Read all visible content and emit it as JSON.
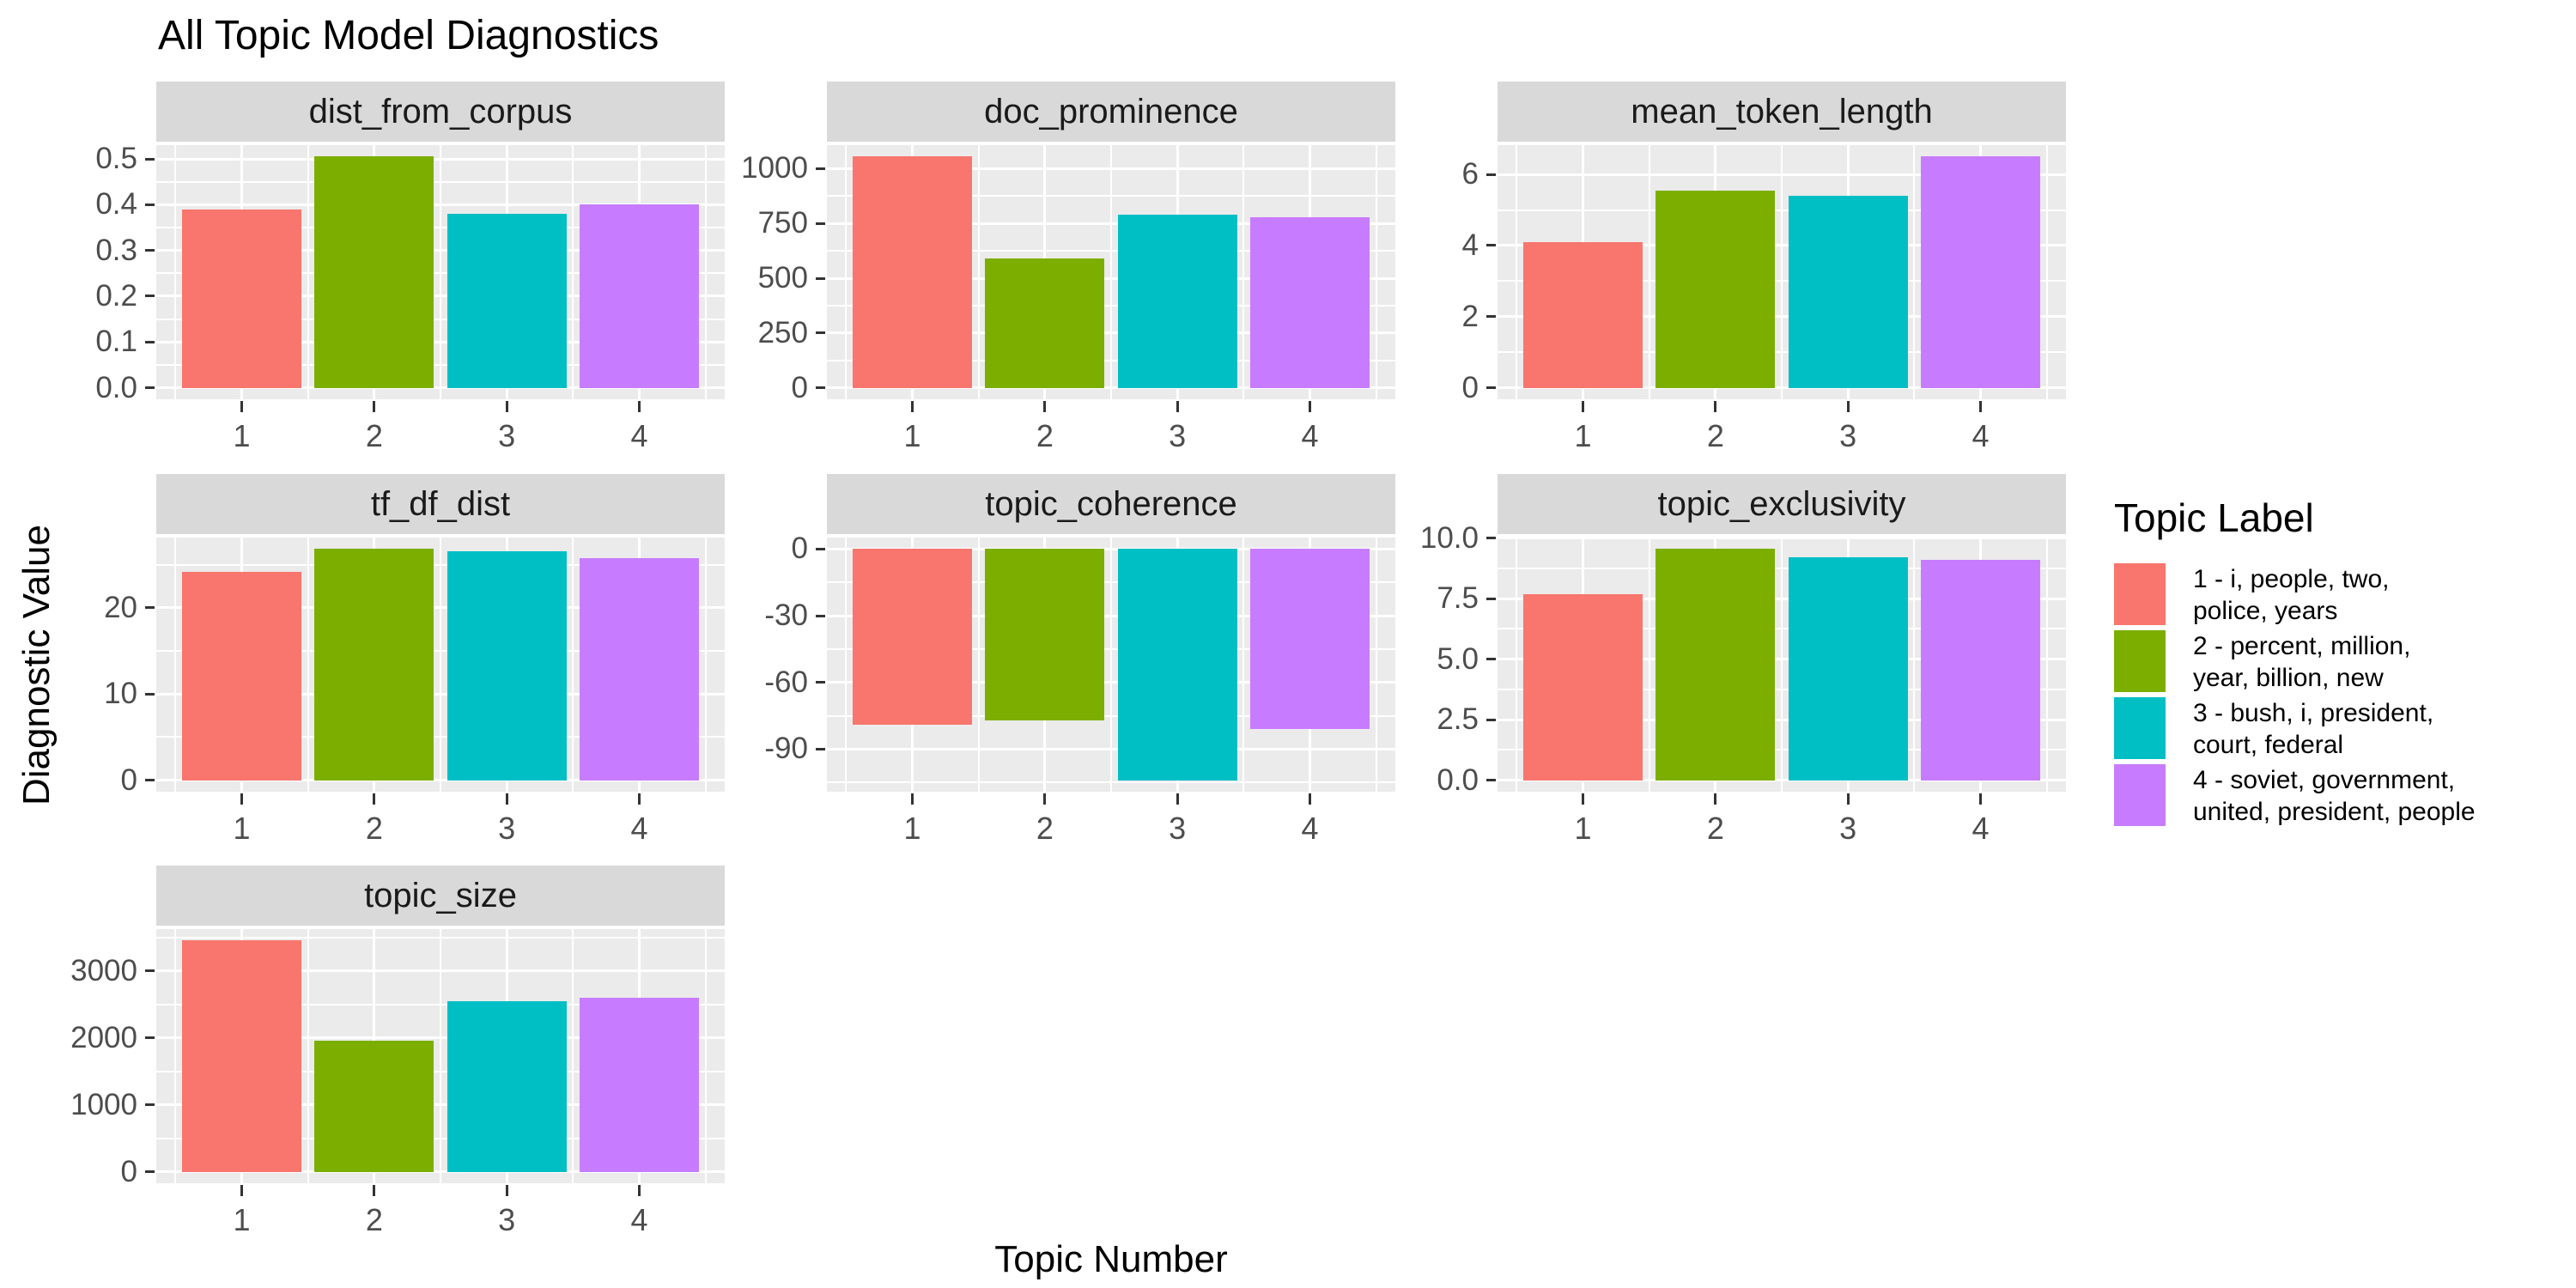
{
  "title": "All Topic Model Diagnostics",
  "axes": {
    "y_title": "Diagnostic Value",
    "x_title": "Topic Number"
  },
  "legend": {
    "title": "Topic Label",
    "items": [
      {
        "color": "#F8766D",
        "label": "1 - i, people, two, police, years",
        "lines": [
          "1 - i, people, two,",
          "police, years"
        ]
      },
      {
        "color": "#7CAE00",
        "label": "2 - percent, million, year, billion, new",
        "lines": [
          "2 - percent, million,",
          "year, billion, new"
        ]
      },
      {
        "color": "#00BFC4",
        "label": "3 - bush, i, president, court, federal",
        "lines": [
          "3 - bush, i, president,",
          "court, federal"
        ]
      },
      {
        "color": "#C77CFF",
        "label": "4 - soviet, government, united, president, people",
        "lines": [
          "4 - soviet, government,",
          "united, president, people"
        ]
      }
    ]
  },
  "colors": {
    "bar_palette": [
      "#F8766D",
      "#7CAE00",
      "#00BFC4",
      "#C77CFF"
    ],
    "panel_background": "#EBEBEB",
    "strip_background": "#D9D9D9",
    "gridline": "#FFFFFF",
    "tick_text": "#4D4D4D"
  },
  "chart_data": {
    "type": "bar",
    "faceted": true,
    "title": "All Topic Model Diagnostics",
    "xlabel": "Topic Number",
    "ylabel": "Diagnostic Value",
    "categories": [
      "1",
      "2",
      "3",
      "4"
    ],
    "bar_colors": [
      "#F8766D",
      "#7CAE00",
      "#00BFC4",
      "#C77CFF"
    ],
    "legend_position": "right",
    "grid": true,
    "facets": [
      {
        "name": "dist_from_corpus",
        "values": [
          0.39,
          0.505,
          0.38,
          0.4
        ],
        "yticks": [
          0,
          0.1,
          0.2,
          0.3,
          0.4,
          0.5
        ],
        "ytick_labels": [
          "0.0",
          "0.1",
          "0.2",
          "0.3",
          "0.4",
          "0.5"
        ],
        "ylim": [
          -0.0253,
          0.5303
        ]
      },
      {
        "name": "doc_prominence",
        "values": [
          1055,
          590,
          790,
          778
        ],
        "yticks": [
          0,
          250,
          500,
          750,
          1000
        ],
        "ytick_labels": [
          "0",
          "250",
          "500",
          "750",
          "1000"
        ],
        "ylim": [
          -52.75,
          1107.75
        ]
      },
      {
        "name": "mean_token_length",
        "values": [
          4.1,
          5.55,
          5.4,
          6.5
        ],
        "yticks": [
          0,
          2,
          4,
          6
        ],
        "ytick_labels": [
          "0",
          "2",
          "4",
          "6"
        ],
        "ylim": [
          -0.325,
          6.825
        ]
      },
      {
        "name": "tf_df_dist",
        "values": [
          24.2,
          26.8,
          26.5,
          25.7
        ],
        "yticks": [
          0,
          10,
          20
        ],
        "ytick_labels": [
          "0",
          "10",
          "20"
        ],
        "ylim": [
          -1.34,
          28.14
        ]
      },
      {
        "name": "topic_coherence",
        "values": [
          -79,
          -77,
          -104,
          -81
        ],
        "yticks": [
          -90,
          -60,
          -30,
          0
        ],
        "ytick_labels": [
          "-90",
          "-60",
          "-30",
          "0"
        ],
        "ylim": [
          -109.2,
          5.2
        ]
      },
      {
        "name": "topic_exclusivity",
        "values": [
          7.7,
          9.55,
          9.2,
          9.1
        ],
        "yticks": [
          0,
          2.5,
          5,
          7.5,
          10
        ],
        "ytick_labels": [
          "0.0",
          "2.5",
          "5.0",
          "7.5",
          "10.0"
        ],
        "ylim": [
          -0.4775,
          10.0275
        ]
      },
      {
        "name": "topic_size",
        "values": [
          3450,
          1950,
          2550,
          2600
        ],
        "yticks": [
          0,
          1000,
          2000,
          3000
        ],
        "ytick_labels": [
          "0",
          "1000",
          "2000",
          "3000"
        ],
        "ylim": [
          -172.5,
          3622.5
        ]
      }
    ]
  }
}
